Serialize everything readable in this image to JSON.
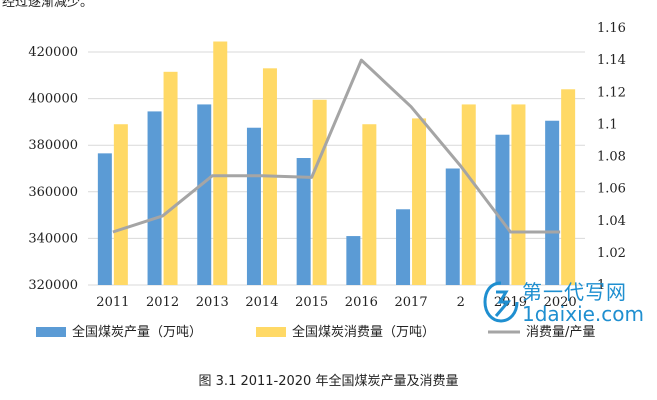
{
  "header_fragment": "经过逐渐减少。",
  "caption": "图 3.1 2011-2020 年全国煤炭产量及消费量",
  "watermark": {
    "line1": "第一代写网",
    "line2": "1daixie.com"
  },
  "chart_data": {
    "type": "bar",
    "categories": [
      "2011",
      "2012",
      "2013",
      "2014",
      "2015",
      "2016",
      "2017",
      "2018",
      "2019",
      "2020"
    ],
    "category_labels_shown": [
      "2011",
      "2012",
      "2013",
      "2014",
      "2015",
      "2016",
      "2017",
      "2",
      "2019",
      "2020"
    ],
    "series": [
      {
        "name": "全国煤炭产量（万吨）",
        "type": "bar",
        "axis": "left",
        "color": "#5b9bd5",
        "values": [
          376500,
          394500,
          397500,
          387500,
          374500,
          341000,
          352500,
          370000,
          384500,
          390500
        ]
      },
      {
        "name": "全国煤炭消费量（万吨）",
        "type": "bar",
        "axis": "left",
        "color": "#ffd966",
        "values": [
          389000,
          411500,
          424500,
          413000,
          399500,
          389000,
          391500,
          397500,
          397500,
          404000
        ]
      },
      {
        "name": "消费量/产量",
        "type": "line",
        "axis": "right",
        "color": "#a5a5a5",
        "values": [
          1.033,
          1.043,
          1.068,
          1.068,
          1.067,
          1.14,
          1.111,
          1.074,
          1.033,
          1.033
        ]
      }
    ],
    "y_left": {
      "min": 320000,
      "max": 420000,
      "ticks": [
        320000,
        340000,
        360000,
        380000,
        400000,
        420000
      ]
    },
    "y_right": {
      "min": 1.0,
      "max": 1.16,
      "ticks": [
        "1",
        "1.02",
        "1.04",
        "1.06",
        "1.08",
        "1.1",
        "1.12",
        "1.14",
        "1.16"
      ]
    },
    "grid": true,
    "legend_position": "bottom"
  }
}
